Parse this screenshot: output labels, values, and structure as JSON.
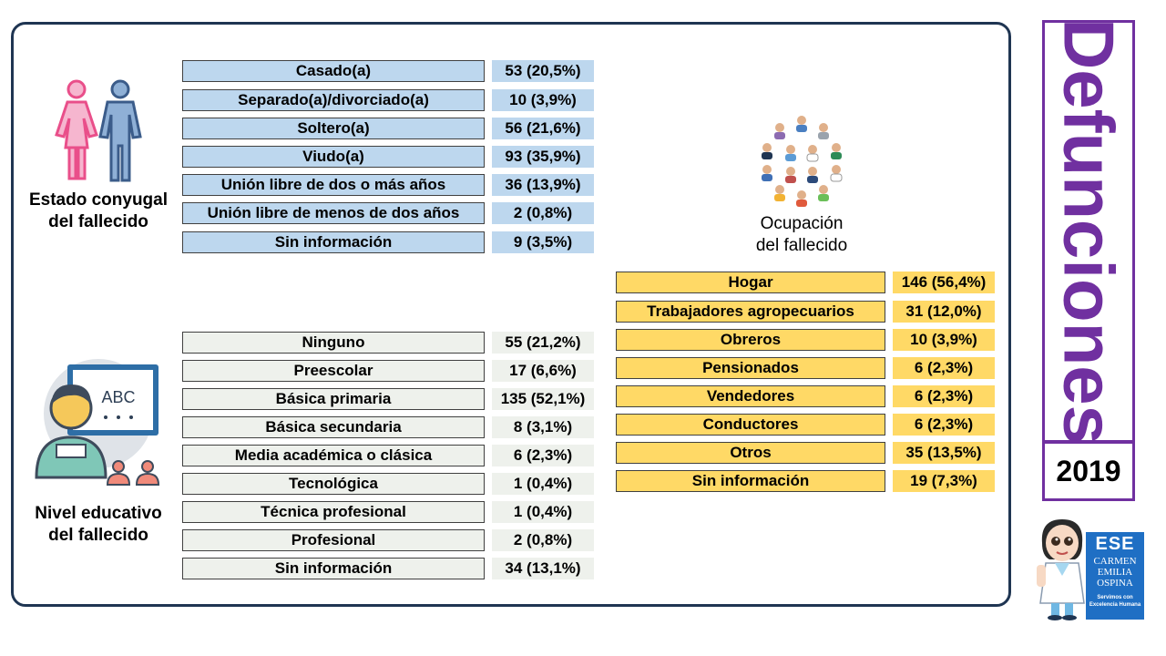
{
  "title": "Defunciones",
  "year": "2019",
  "marital": {
    "caption_line1": "Estado conyugal",
    "caption_line2": "del fallecido",
    "rows": [
      {
        "label": "Casado(a)",
        "value": "53 (20,5%)"
      },
      {
        "label": "Separado(a)/divorciado(a)",
        "value": "10 (3,9%)"
      },
      {
        "label": "Soltero(a)",
        "value": "56 (21,6%)"
      },
      {
        "label": "Viudo(a)",
        "value": "93 (35,9%)"
      },
      {
        "label": "Unión libre de dos o más años",
        "value": "36 (13,9%)"
      },
      {
        "label": "Unión libre de menos de dos años",
        "value": "2 (0,8%)"
      },
      {
        "label": "Sin información",
        "value": "9 (3,5%)"
      }
    ]
  },
  "education": {
    "caption_line1": "Nivel educativo",
    "caption_line2": "del fallecido",
    "board_text": "ABC",
    "rows": [
      {
        "label": "Ninguno",
        "value": "55 (21,2%)"
      },
      {
        "label": "Preescolar",
        "value": "17 (6,6%)"
      },
      {
        "label": "Básica primaria",
        "value": "135 (52,1%)"
      },
      {
        "label": "Básica secundaria",
        "value": "8 (3,1%)"
      },
      {
        "label": "Media académica o clásica",
        "value": "6 (2,3%)"
      },
      {
        "label": "Tecnológica",
        "value": "1 (0,4%)"
      },
      {
        "label": "Técnica profesional",
        "value": "1 (0,4%)"
      },
      {
        "label": "Profesional",
        "value": "2 (0,8%)"
      },
      {
        "label": "Sin información",
        "value": "34 (13,1%)"
      }
    ]
  },
  "occupation": {
    "caption_line1": "Ocupación",
    "caption_line2": "del fallecido",
    "rows": [
      {
        "label": "Hogar",
        "value": "146 (56,4%)"
      },
      {
        "label": "Trabajadores agropecuarios",
        "value": "31 (12,0%)"
      },
      {
        "label": "Obreros",
        "value": "10 (3,9%)"
      },
      {
        "label": "Pensionados",
        "value": "6 (2,3%)"
      },
      {
        "label": "Vendedores",
        "value": "6 (2,3%)"
      },
      {
        "label": "Conductores",
        "value": "6 (2,3%)"
      },
      {
        "label": "Otros",
        "value": "35 (13,5%)"
      },
      {
        "label": "Sin información",
        "value": "19 (7,3%)"
      }
    ]
  },
  "logo": {
    "mark": "ESE",
    "name_line1": "CARMEN",
    "name_line2": "EMILIA",
    "name_line3": "OSPINA",
    "slogan_line1": "Servimos con",
    "slogan_line2": "Excelencia Humana"
  },
  "colors": {
    "panel_border": "#1f3552",
    "accent_purple": "#7030a0",
    "marital_fill": "#bdd7ee",
    "education_fill": "#eef1ec",
    "occupation_fill": "#ffd966",
    "logo_blue": "#1f6fc4"
  },
  "icons": {
    "marital": "couple-icon",
    "education": "teacher-board-icon",
    "occupation": "people-circle-icon",
    "mascot": "doctor-mascot-icon"
  }
}
